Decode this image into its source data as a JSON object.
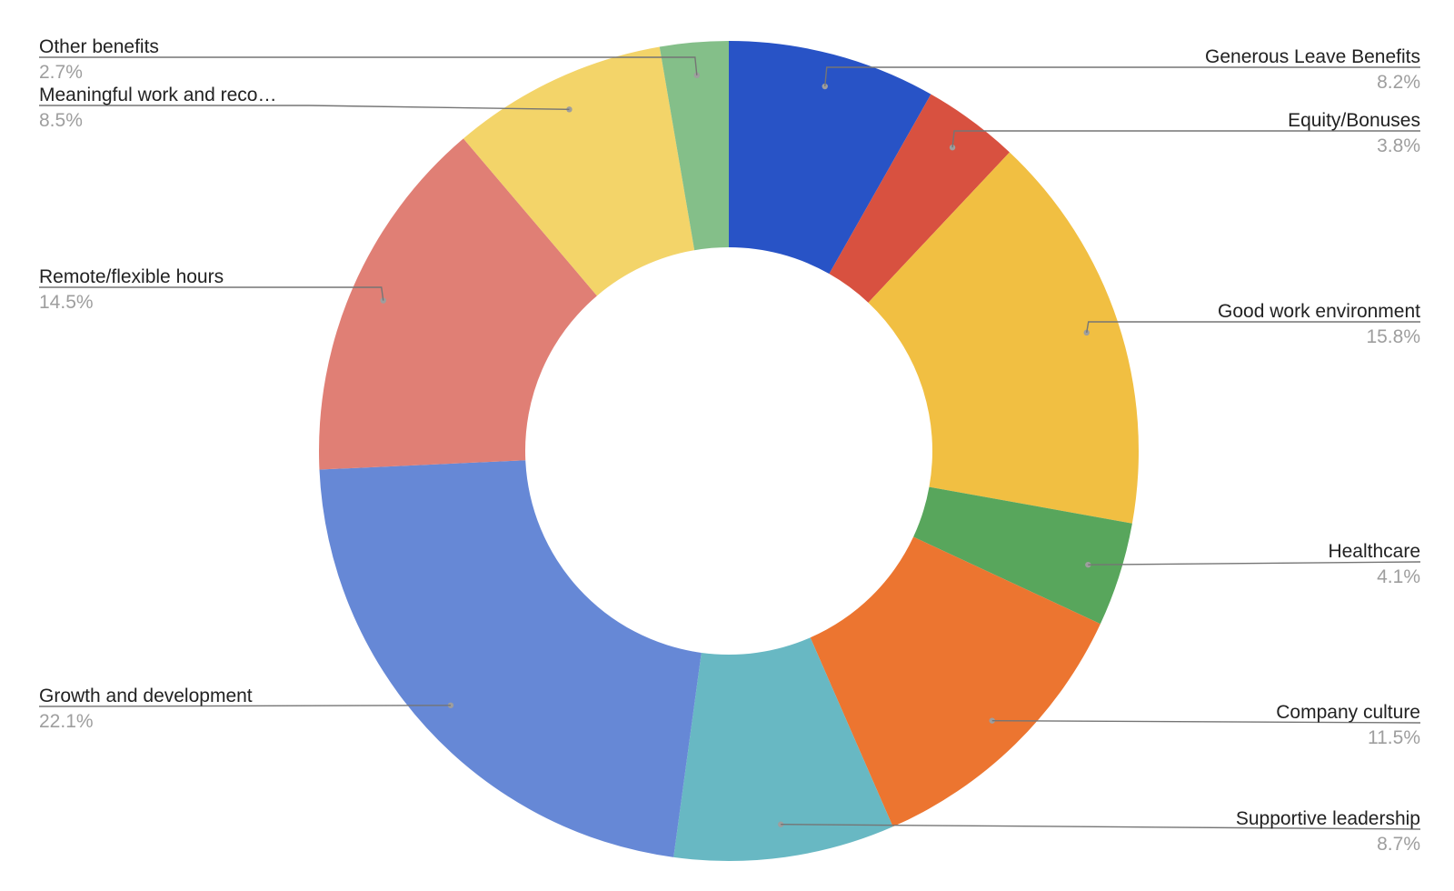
{
  "chart_data": {
    "type": "pie",
    "donut": true,
    "title": "",
    "legend": "none",
    "slices": [
      {
        "label": "Generous Leave Benefits",
        "value": 8.2,
        "display": "8.2%",
        "color": "#2853c6"
      },
      {
        "label": "Equity/Bonuses",
        "value": 3.8,
        "display": "3.8%",
        "color": "#d85140"
      },
      {
        "label": "Good work environment",
        "value": 15.8,
        "display": "15.8%",
        "color": "#f1bf42"
      },
      {
        "label": "Healthcare",
        "value": 4.1,
        "display": "4.1%",
        "color": "#58a65c"
      },
      {
        "label": "Company culture",
        "value": 11.5,
        "display": "11.5%",
        "color": "#ec7530"
      },
      {
        "label": "Supportive leadership",
        "value": 8.7,
        "display": "8.7%",
        "color": "#68b8c3"
      },
      {
        "label": "Growth and development",
        "value": 22.1,
        "display": "22.1%",
        "color": "#6688d6"
      },
      {
        "label": "Remote/flexible hours",
        "value": 14.5,
        "display": "14.5%",
        "color": "#e07f75"
      },
      {
        "label": "Meaningful work and reco…",
        "value": 8.5,
        "display": "8.5%",
        "color": "#f3d469"
      },
      {
        "label": "Other benefits",
        "value": 2.7,
        "display": "2.7%",
        "color": "#84bf89"
      }
    ]
  }
}
